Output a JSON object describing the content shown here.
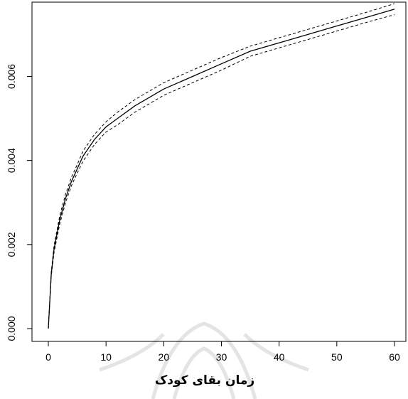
{
  "chart_data": {
    "type": "line",
    "title": "",
    "xlabel": "زمان بقای کودک",
    "ylabel": "",
    "xlim": [
      0,
      60
    ],
    "ylim": [
      0,
      0.0077
    ],
    "x_ticks": [
      0,
      10,
      20,
      30,
      40,
      50,
      60
    ],
    "x_tick_labels": [
      "0",
      "10",
      "20",
      "30",
      "40",
      "50",
      "60"
    ],
    "y_ticks": [
      0,
      0.002,
      0.004,
      0.006
    ],
    "y_tick_labels": [
      "0.000",
      "0.002",
      "0.004",
      "0.006"
    ],
    "grid": false,
    "legend": "none",
    "series": [
      {
        "style": "solid",
        "x": [
          0,
          0.5,
          1,
          2,
          3,
          4,
          5,
          6,
          8,
          10,
          12,
          15,
          20,
          25,
          30,
          35,
          40,
          45,
          50,
          55,
          60
        ],
        "values": [
          0,
          0.0013,
          0.0019,
          0.0026,
          0.0031,
          0.0035,
          0.0038,
          0.0041,
          0.0045,
          0.0048,
          0.005,
          0.0053,
          0.0057,
          0.006,
          0.0063,
          0.0066,
          0.0068,
          0.007,
          0.0072,
          0.0074,
          0.0076
        ]
      },
      {
        "style": "dashed",
        "x": [
          0,
          0.5,
          1,
          2,
          3,
          4,
          5,
          6,
          8,
          10,
          12,
          15,
          20,
          25,
          30,
          35,
          40,
          45,
          50,
          55,
          60
        ],
        "values": [
          0,
          0.00135,
          0.00198,
          0.0027,
          0.0032,
          0.0036,
          0.0039,
          0.00422,
          0.00462,
          0.00492,
          0.00515,
          0.00545,
          0.00585,
          0.00615,
          0.00645,
          0.00672,
          0.00692,
          0.00712,
          0.00732,
          0.00752,
          0.00773
        ]
      },
      {
        "style": "dashed",
        "x": [
          0,
          0.5,
          1,
          2,
          3,
          4,
          5,
          6,
          8,
          10,
          12,
          15,
          20,
          25,
          30,
          35,
          40,
          45,
          50,
          55,
          60
        ],
        "values": [
          0,
          0.00125,
          0.00182,
          0.0025,
          0.003,
          0.0034,
          0.0037,
          0.00398,
          0.00438,
          0.00468,
          0.00485,
          0.00515,
          0.00555,
          0.00585,
          0.00615,
          0.00648,
          0.00668,
          0.00688,
          0.00708,
          0.00728,
          0.00747
        ]
      }
    ]
  }
}
